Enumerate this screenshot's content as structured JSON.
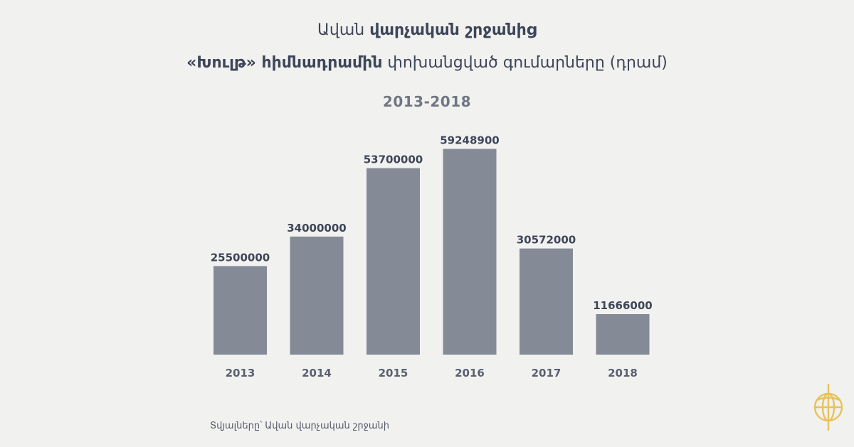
{
  "title": {
    "line1_normal": "Ավան ",
    "line1_bold": "վարչական շրջանից",
    "line2_bold": "«Խուլթ» հիմնադրամին",
    "line2_normal": " փոխանցված գումարները (դրամ)"
  },
  "subtitle": "2013-2018",
  "source": "Տվյալները՝ Ավան վարչական շրջանի",
  "colors": {
    "bar": "#848a96",
    "text": "#3d4658",
    "background": "#f1f1f0",
    "logo": "#e8c25a"
  },
  "logo": {
    "icon": "globe-logo-icon"
  },
  "chart_data": {
    "type": "bar",
    "categories": [
      "2013",
      "2014",
      "2015",
      "2016",
      "2017",
      "2018"
    ],
    "values": [
      25500000,
      34000000,
      53700000,
      59248900,
      30572000,
      11666000
    ],
    "value_labels": [
      "25500000",
      "34000000",
      "53700000",
      "59248900",
      "30572000",
      "11666000"
    ],
    "title": "Ավան վարչական շրջանից «Խուլթ» հիմնադրամին փոխանցված գումարները (դրամ)",
    "subtitle": "2013-2018",
    "xlabel": "",
    "ylabel": "",
    "ylim": [
      0,
      70000000
    ],
    "grid": false,
    "legend": "none"
  }
}
